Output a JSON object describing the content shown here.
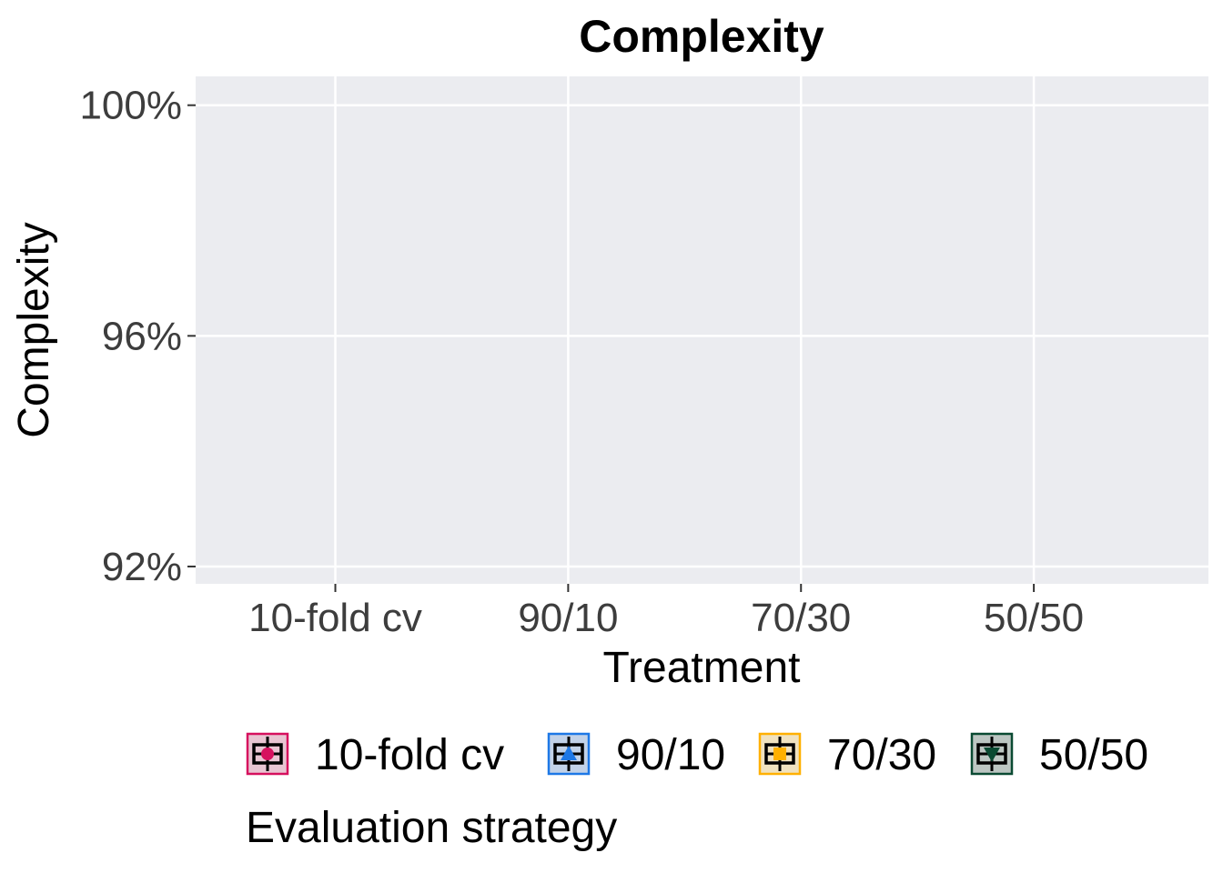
{
  "chart_data": {
    "type": "box",
    "title": "Complexity",
    "xlabel": "Treatment",
    "ylabel": "Complexity",
    "categories": [
      "10-fold cv",
      "90/10",
      "70/30",
      "50/50"
    ],
    "y_ticks": [
      {
        "value": 100,
        "label": "100%"
      },
      {
        "value": 96,
        "label": "96%"
      },
      {
        "value": 92,
        "label": "92%"
      }
    ],
    "ylim": [
      91.7,
      100.5
    ],
    "grid": true,
    "series": [],
    "legend": {
      "title": "Evaluation strategy",
      "position": "bottom",
      "items": [
        {
          "label": "10-fold cv",
          "color": "#d6105e",
          "fill": "#e8c5d2",
          "shape": "circle"
        },
        {
          "label": "90/10",
          "color": "#1e78e6",
          "fill": "#c2d2e8",
          "shape": "triangle-up"
        },
        {
          "label": "70/30",
          "color": "#ffb000",
          "fill": "#f0e2c0",
          "shape": "square"
        },
        {
          "label": "50/50",
          "color": "#0a4a32",
          "fill": "#bcc6c2",
          "shape": "triangle-down"
        }
      ]
    },
    "panel_background": "#ebecf0",
    "grid_color": "#ffffff"
  }
}
